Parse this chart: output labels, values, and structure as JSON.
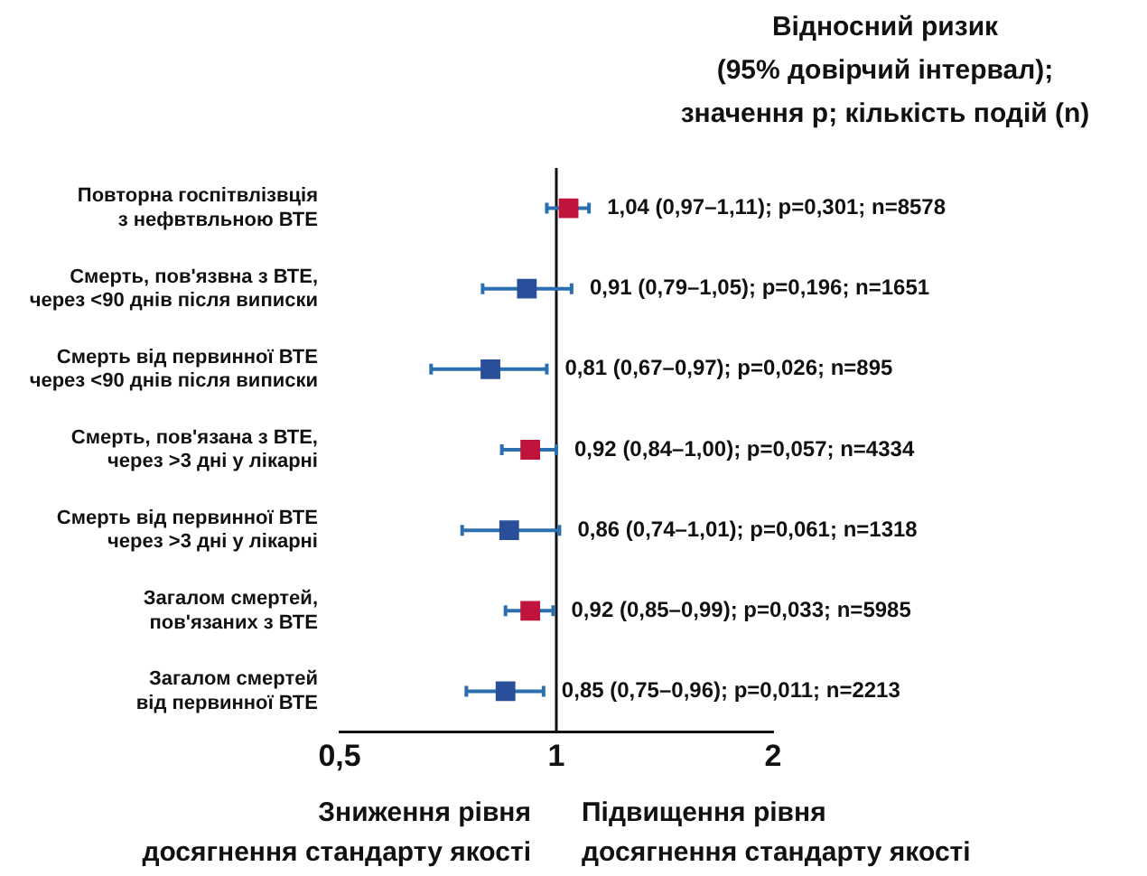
{
  "chart_data": {
    "type": "scatter",
    "orientation": "horizontal",
    "title": "Відносний ризик\n(95% довірчий інтервал);\nзначення p; кількість подій (n)",
    "categories": [
      "Повторна госпітвлізвція\nз нефвтвльною ВТЕ",
      "Смерть, пов'язвна з ВТЕ,\nчерез <90 днів після виписки",
      "Смерть від первинної ВТЕ\nчерез <90 днів після виписки",
      "Смерть, пов'язана з ВТЕ,\nчерез >3 дні у лікарні",
      "Смерть від первинної ВТЕ\nчерез >3 дні у лікарні",
      "Загалом смертей,\nпов'язаних з ВТЕ",
      "Загалом смертей\nвід первинної ВТЕ"
    ],
    "values": [
      1.04,
      0.91,
      0.81,
      0.92,
      0.86,
      0.92,
      0.85
    ],
    "errors": [
      [
        0.97,
        1.11
      ],
      [
        0.79,
        1.05
      ],
      [
        0.67,
        0.97
      ],
      [
        0.84,
        1.0
      ],
      [
        0.74,
        1.01
      ],
      [
        0.85,
        0.99
      ],
      [
        0.75,
        0.96
      ]
    ],
    "value_labels": [
      "1,04 (0,97–1,11); p=0,301; n=8578",
      "0,91 (0,79–1,05); p=0,196; n=1651",
      "0,81 (0,67–0,97); p=0,026; n=895",
      "0,92 (0,84–1,00); p=0,057; n=4334",
      "0,86 (0,74–1,01); p=0,061; n=1318",
      "0,92 (0,85–0,99); p=0,033; n=5985",
      "0,85 (0,75–0,96); p=0,011; n=2213"
    ],
    "colors": [
      "#c0143c",
      "#2a4f9a",
      "#2a4f9a",
      "#c0143c",
      "#2a4f9a",
      "#c0143c",
      "#2a4f9a"
    ],
    "xlim": [
      0.5,
      2
    ],
    "xticks": [
      {
        "value": 0.5,
        "label": "0,5"
      },
      1,
      2
    ],
    "log": "x",
    "marker": "square",
    "grid": false,
    "legend": false,
    "ref_lines": [
      {
        "axis": "x",
        "value": 1,
        "color": "#111111"
      }
    ],
    "annotations": [
      "Зниження рівня\nдосягнення стандарту якості",
      "Підвищення рівня\nдосягнення стандарту якості"
    ]
  }
}
